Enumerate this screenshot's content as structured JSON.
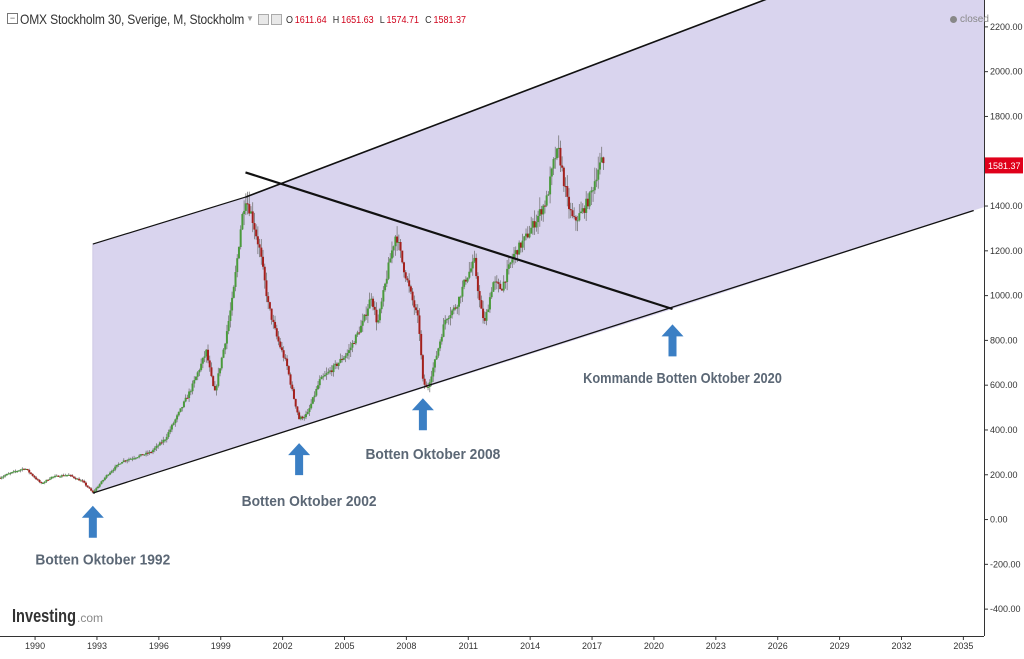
{
  "header": {
    "toggle_glyph": "−",
    "symbol": "OMX Stockholm 30, Sverige, M, Stockholm",
    "ohlc": {
      "o_label": "O",
      "o": "1611.64",
      "h_label": "H",
      "h": "1651.63",
      "l_label": "L",
      "l": "1574.71",
      "c_label": "C",
      "c": "1581.37"
    },
    "status": "closed"
  },
  "colors": {
    "up": "#4a9a3c",
    "down": "#a3201c",
    "channel_fill": "#d9d4ee",
    "arrow": "#3b7fc4",
    "annotation": "#5b6775",
    "price_label_bg": "#e0001b"
  },
  "watermark": {
    "brand": "Investing",
    "suffix": ".com"
  },
  "chart_data": {
    "type": "candlestick",
    "interval": "monthly",
    "title": "OMX Stockholm 30, Sverige, M, Stockholm",
    "x_range": [
      1988.3,
      2036.0
    ],
    "x_ticks": [
      "1990",
      "1993",
      "1996",
      "1999",
      "2002",
      "2005",
      "2008",
      "2011",
      "2014",
      "2017",
      "2020",
      "2023",
      "2026",
      "2029",
      "2032",
      "2035"
    ],
    "ylim": [
      -520,
      2320
    ],
    "y_ticks": [
      "2200.00",
      "2000.00",
      "1800.00",
      "1600.00",
      "1400.00",
      "1200.00",
      "1000.00",
      "800.00",
      "600.00",
      "400.00",
      "200.00",
      "0.00",
      "-200.00",
      "-400.00"
    ],
    "last_price": "1581.37",
    "anchors": [
      [
        1986.0,
        130
      ],
      [
        1987.5,
        150
      ],
      [
        1988.6,
        200
      ],
      [
        1989.5,
        230
      ],
      [
        1990.3,
        160
      ],
      [
        1990.8,
        190
      ],
      [
        1991.6,
        200
      ],
      [
        1992.3,
        170
      ],
      [
        1992.8,
        120
      ],
      [
        1993.5,
        200
      ],
      [
        1994.2,
        260
      ],
      [
        1994.9,
        280
      ],
      [
        1995.6,
        300
      ],
      [
        1996.3,
        360
      ],
      [
        1997.0,
        480
      ],
      [
        1997.6,
        590
      ],
      [
        1998.3,
        750
      ],
      [
        1998.7,
        560
      ],
      [
        1999.2,
        790
      ],
      [
        1999.6,
        1000
      ],
      [
        2000.0,
        1330
      ],
      [
        2000.2,
        1440
      ],
      [
        2000.5,
        1360
      ],
      [
        2000.9,
        1200
      ],
      [
        2001.3,
        960
      ],
      [
        2001.7,
        820
      ],
      [
        2002.2,
        690
      ],
      [
        2002.5,
        560
      ],
      [
        2002.8,
        450
      ],
      [
        2003.2,
        470
      ],
      [
        2003.8,
        620
      ],
      [
        2004.5,
        680
      ],
      [
        2005.2,
        750
      ],
      [
        2005.9,
        880
      ],
      [
        2006.3,
        1000
      ],
      [
        2006.6,
        870
      ],
      [
        2007.2,
        1160
      ],
      [
        2007.5,
        1280
      ],
      [
        2007.8,
        1150
      ],
      [
        2008.2,
        1010
      ],
      [
        2008.6,
        880
      ],
      [
        2008.8,
        620
      ],
      [
        2009.0,
        580
      ],
      [
        2009.4,
        710
      ],
      [
        2009.9,
        900
      ],
      [
        2010.4,
        950
      ],
      [
        2010.9,
        1080
      ],
      [
        2011.3,
        1150
      ],
      [
        2011.6,
        940
      ],
      [
        2011.8,
        880
      ],
      [
        2012.2,
        1060
      ],
      [
        2012.6,
        1030
      ],
      [
        2013.2,
        1180
      ],
      [
        2013.8,
        1260
      ],
      [
        2014.3,
        1340
      ],
      [
        2014.8,
        1430
      ],
      [
        2015.2,
        1620
      ],
      [
        2015.4,
        1640
      ],
      [
        2015.8,
        1420
      ],
      [
        2016.1,
        1330
      ],
      [
        2016.5,
        1370
      ],
      [
        2016.9,
        1440
      ],
      [
        2017.3,
        1570
      ],
      [
        2017.5,
        1600
      ],
      [
        2017.6,
        1581
      ]
    ],
    "channel_upper": [
      [
        1992.8,
        1230
      ],
      [
        2000.2,
        1440
      ],
      [
        2026.5,
        2360
      ]
    ],
    "channel_lower": [
      [
        1992.8,
        118
      ],
      [
        2020.9,
        940
      ],
      [
        2035.5,
        1380
      ]
    ],
    "trendline": [
      [
        2000.2,
        1550
      ],
      [
        2020.9,
        940
      ]
    ],
    "annotations": [
      {
        "text": "Botten Oktober 1992",
        "x": 1992.8,
        "y": -200,
        "arrow_y": -10
      },
      {
        "text": "Botten Oktober 2002",
        "x": 2002.8,
        "y": 60,
        "arrow_y": 270
      },
      {
        "text": "Botten Oktober 2008",
        "x": 2008.8,
        "y": 270,
        "arrow_y": 470
      },
      {
        "text": "Kommande Botten Oktober 2020",
        "x": 2020.9,
        "y": 610,
        "arrow_y": 800
      }
    ]
  }
}
